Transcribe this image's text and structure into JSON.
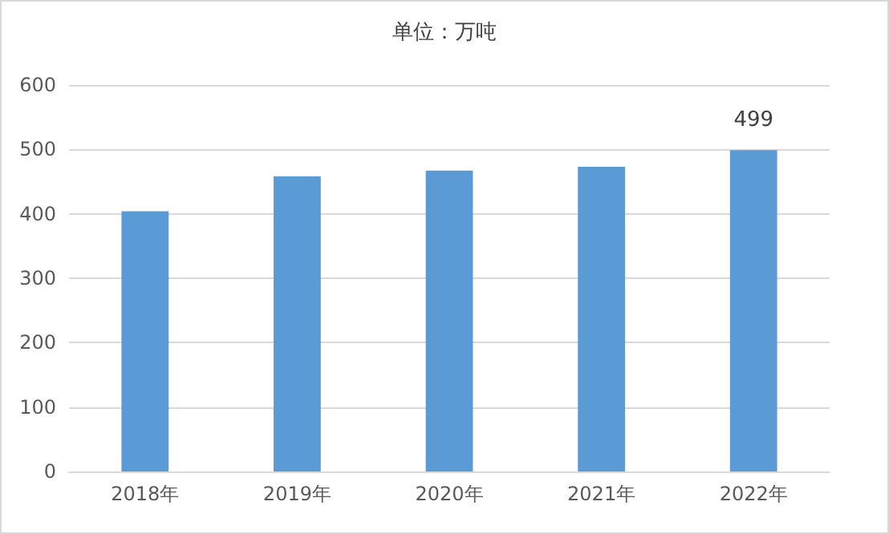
{
  "chart_data": {
    "type": "bar",
    "title": "单位：万吨",
    "categories": [
      "2018年",
      "2019年",
      "2020年",
      "2021年",
      "2022年"
    ],
    "values": [
      404,
      458,
      467,
      473,
      499
    ],
    "value_labels": [
      null,
      null,
      null,
      null,
      "499"
    ],
    "color": "#5b9bd5",
    "ylim": [
      0,
      600
    ],
    "yticks": [
      0,
      100,
      200,
      300,
      400,
      500,
      600
    ],
    "grid": "y"
  }
}
